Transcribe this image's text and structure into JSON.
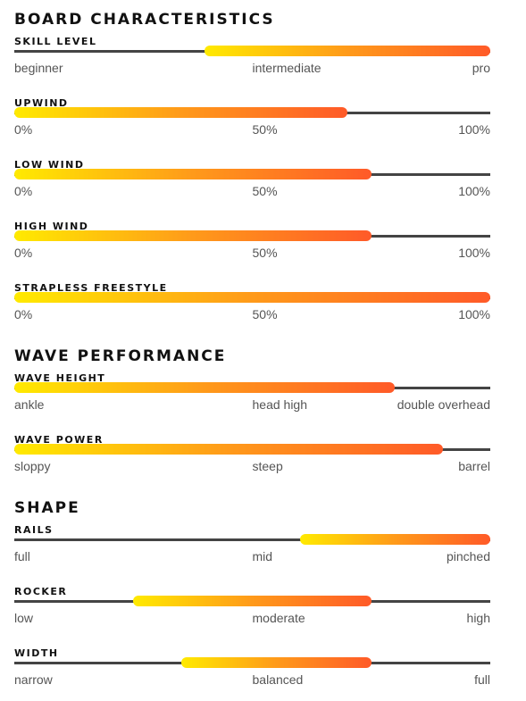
{
  "range_limits": [
    0,
    100
  ],
  "sections": [
    {
      "title": "BOARD CHARACTERISTICS",
      "items": [
        {
          "label": "SKILL LEVEL",
          "range": [
            40,
            100
          ],
          "scale": [
            "beginner",
            "intermediate",
            "pro"
          ]
        },
        {
          "label": "UPWIND",
          "range": [
            0,
            70
          ],
          "scale": [
            "0%",
            "50%",
            "100%"
          ]
        },
        {
          "label": "LOW WIND",
          "range": [
            0,
            75
          ],
          "scale": [
            "0%",
            "50%",
            "100%"
          ]
        },
        {
          "label": "HIGH WIND",
          "range": [
            0,
            75
          ],
          "scale": [
            "0%",
            "50%",
            "100%"
          ]
        },
        {
          "label": "STRAPLESS FREESTYLE",
          "range": [
            0,
            100
          ],
          "scale": [
            "0%",
            "50%",
            "100%"
          ]
        }
      ]
    },
    {
      "title": "WAVE PERFORMANCE",
      "items": [
        {
          "label": "WAVE HEIGHT",
          "range": [
            0,
            80
          ],
          "scale": [
            "ankle",
            "head high",
            "double overhead"
          ]
        },
        {
          "label": "WAVE POWER",
          "range": [
            0,
            90
          ],
          "scale": [
            "sloppy",
            "steep",
            "barrel"
          ]
        }
      ]
    },
    {
      "title": "SHAPE",
      "items": [
        {
          "label": "RAILS",
          "range": [
            60,
            100
          ],
          "scale": [
            "full",
            "mid",
            "pinched"
          ]
        },
        {
          "label": "ROCKER",
          "range": [
            25,
            75
          ],
          "scale": [
            "low",
            "moderate",
            "high"
          ]
        },
        {
          "label": "WIDTH",
          "range": [
            35,
            75
          ],
          "scale": [
            "narrow",
            "balanced",
            "full"
          ]
        }
      ]
    }
  ]
}
